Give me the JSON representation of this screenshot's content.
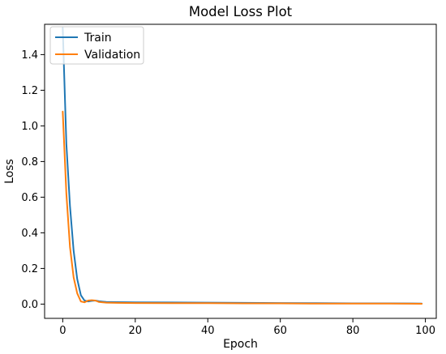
{
  "chart_data": {
    "type": "line",
    "title": "Model Loss Plot",
    "xlabel": "Epoch",
    "ylabel": "Loss",
    "xlim": [
      -5,
      103
    ],
    "ylim": [
      -0.08,
      1.57
    ],
    "xticks": [
      0,
      20,
      40,
      60,
      80,
      100
    ],
    "yticks": [
      0.0,
      0.2,
      0.4,
      0.6,
      0.8,
      1.0,
      1.2,
      1.4
    ],
    "xtick_labels": [
      "0",
      "20",
      "40",
      "60",
      "80",
      "100"
    ],
    "ytick_labels": [
      "0.0",
      "0.2",
      "0.4",
      "0.6",
      "0.8",
      "1.0",
      "1.2",
      "1.4"
    ],
    "grid": false,
    "legend_position": "top-left",
    "series": [
      {
        "name": "Train",
        "color": "#1f77b4",
        "x": [
          0,
          1,
          2,
          3,
          4,
          5,
          6,
          7,
          8,
          9,
          10,
          12,
          15,
          20,
          30,
          40,
          50,
          60,
          70,
          80,
          90,
          99
        ],
        "values": [
          1.55,
          0.9,
          0.55,
          0.3,
          0.14,
          0.05,
          0.02,
          0.015,
          0.018,
          0.02,
          0.016,
          0.012,
          0.011,
          0.01,
          0.009,
          0.008,
          0.007,
          0.006,
          0.005,
          0.004,
          0.004,
          0.003
        ]
      },
      {
        "name": "Validation",
        "color": "#ff7f0e",
        "x": [
          0,
          1,
          2,
          3,
          4,
          5,
          6,
          7,
          8,
          9,
          10,
          12,
          15,
          20,
          30,
          40,
          50,
          60,
          70,
          80,
          90,
          99
        ],
        "values": [
          1.08,
          0.62,
          0.32,
          0.15,
          0.06,
          0.015,
          0.01,
          0.02,
          0.022,
          0.02,
          0.012,
          0.008,
          0.007,
          0.006,
          0.005,
          0.005,
          0.004,
          0.004,
          0.003,
          0.003,
          0.003,
          0.002
        ]
      }
    ]
  }
}
